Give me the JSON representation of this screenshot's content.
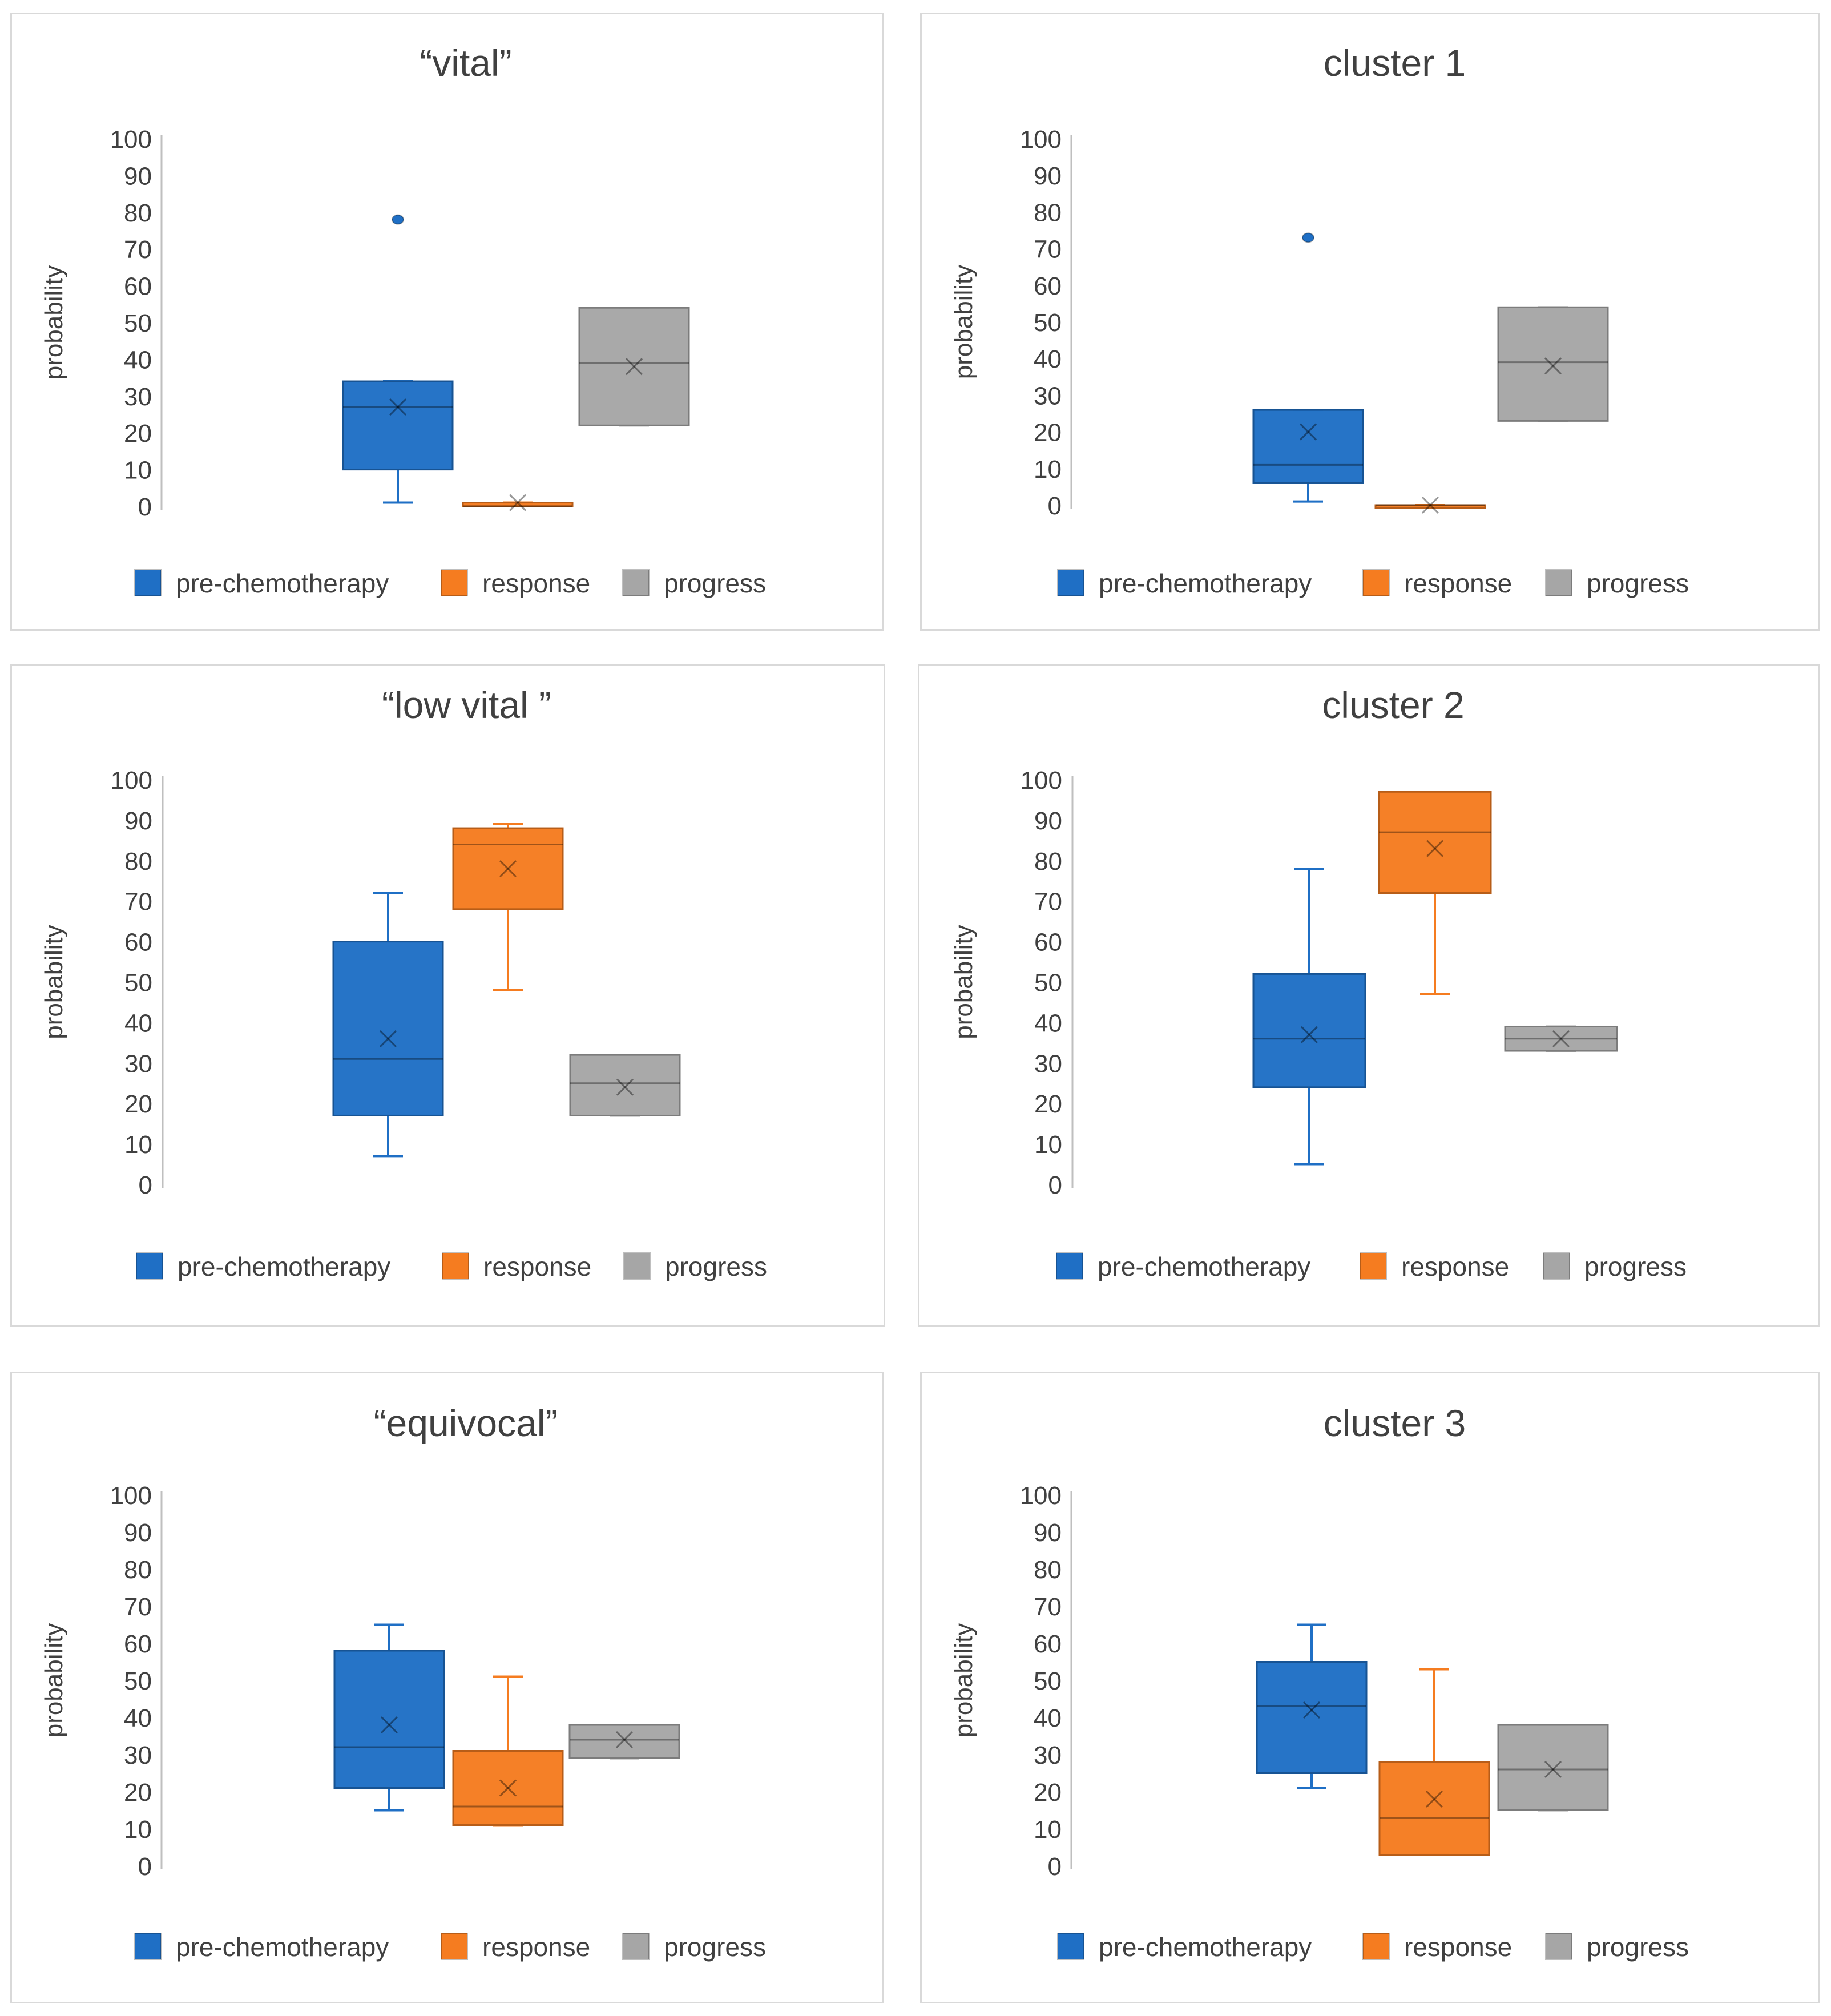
{
  "figure": {
    "colors": {
      "pre-chemotherapy": "#1f6fc5",
      "response": "#f57c20",
      "progress": "#a6a6a6",
      "axis": "#bfbfbf",
      "text": "#404040"
    }
  },
  "chart_data": [
    {
      "type": "boxplot",
      "title": "“vital”",
      "ylabel": "probability",
      "ylim": [
        0,
        100
      ],
      "yticks": [
        0,
        10,
        20,
        30,
        40,
        50,
        60,
        70,
        80,
        90,
        100
      ],
      "legend": "bottom",
      "series": [
        {
          "name": "pre-chemotherapy",
          "min": 1,
          "q1": 10,
          "median": 27,
          "q3": 34,
          "max": 34,
          "mean": 27,
          "outliers": [
            78
          ]
        },
        {
          "name": "response",
          "min": 0,
          "q1": 0,
          "median": 0,
          "q3": 1,
          "max": 1,
          "mean": 1,
          "outliers": []
        },
        {
          "name": "progress",
          "min": 22,
          "q1": 22,
          "median": 39,
          "q3": 54,
          "max": 54,
          "mean": 38,
          "outliers": []
        }
      ]
    },
    {
      "type": "boxplot",
      "title": "cluster 1",
      "ylabel": "probability",
      "ylim": [
        0,
        100
      ],
      "yticks": [
        0,
        10,
        20,
        30,
        40,
        50,
        60,
        70,
        80,
        90,
        100
      ],
      "legend": "bottom",
      "series": [
        {
          "name": "pre-chemotherapy",
          "min": 1,
          "q1": 6,
          "median": 11,
          "q3": 26,
          "max": 26,
          "mean": 20,
          "outliers": [
            73
          ]
        },
        {
          "name": "response",
          "min": 0,
          "q1": 0,
          "median": 0,
          "q3": 0,
          "max": 0,
          "mean": 0,
          "outliers": []
        },
        {
          "name": "progress",
          "min": 23,
          "q1": 23,
          "median": 39,
          "q3": 54,
          "max": 54,
          "mean": 38,
          "outliers": []
        }
      ]
    },
    {
      "type": "boxplot",
      "title": "“low vital ”",
      "ylabel": "probability",
      "ylim": [
        0,
        100
      ],
      "yticks": [
        0,
        10,
        20,
        30,
        40,
        50,
        60,
        70,
        80,
        90,
        100
      ],
      "legend": "bottom",
      "series": [
        {
          "name": "pre-chemotherapy",
          "min": 7,
          "q1": 17,
          "median": 31,
          "q3": 60,
          "max": 72,
          "mean": 36,
          "outliers": []
        },
        {
          "name": "response",
          "min": 48,
          "q1": 68,
          "median": 84,
          "q3": 88,
          "max": 89,
          "mean": 78,
          "outliers": []
        },
        {
          "name": "progress",
          "min": 17,
          "q1": 17,
          "median": 25,
          "q3": 32,
          "max": 32,
          "mean": 24,
          "outliers": []
        }
      ]
    },
    {
      "type": "boxplot",
      "title": "cluster 2",
      "ylabel": "probability",
      "ylim": [
        0,
        100
      ],
      "yticks": [
        0,
        10,
        20,
        30,
        40,
        50,
        60,
        70,
        80,
        90,
        100
      ],
      "legend": "bottom",
      "series": [
        {
          "name": "pre-chemotherapy",
          "min": 5,
          "q1": 24,
          "median": 36,
          "q3": 52,
          "max": 78,
          "mean": 37,
          "outliers": []
        },
        {
          "name": "response",
          "min": 47,
          "q1": 72,
          "median": 87,
          "q3": 97,
          "max": 97,
          "mean": 83,
          "outliers": []
        },
        {
          "name": "progress",
          "min": 33,
          "q1": 33,
          "median": 36,
          "q3": 39,
          "max": 39,
          "mean": 36,
          "outliers": []
        }
      ]
    },
    {
      "type": "boxplot",
      "title": "“equivocal”",
      "ylabel": "probability",
      "ylim": [
        0,
        100
      ],
      "yticks": [
        0,
        10,
        20,
        30,
        40,
        50,
        60,
        70,
        80,
        90,
        100
      ],
      "legend": "bottom",
      "series": [
        {
          "name": "pre-chemotherapy",
          "min": 15,
          "q1": 21,
          "median": 32,
          "q3": 58,
          "max": 65,
          "mean": 38,
          "outliers": []
        },
        {
          "name": "response",
          "min": 11,
          "q1": 11,
          "median": 16,
          "q3": 31,
          "max": 51,
          "mean": 21,
          "outliers": []
        },
        {
          "name": "progress",
          "min": 29,
          "q1": 29,
          "median": 34,
          "q3": 38,
          "max": 38,
          "mean": 34,
          "outliers": []
        }
      ]
    },
    {
      "type": "boxplot",
      "title": "cluster 3",
      "ylabel": "probability",
      "ylim": [
        0,
        100
      ],
      "yticks": [
        0,
        10,
        20,
        30,
        40,
        50,
        60,
        70,
        80,
        90,
        100
      ],
      "legend": "bottom",
      "series": [
        {
          "name": "pre-chemotherapy",
          "min": 21,
          "q1": 25,
          "median": 43,
          "q3": 55,
          "max": 65,
          "mean": 42,
          "outliers": []
        },
        {
          "name": "response",
          "min": 3,
          "q1": 3,
          "median": 13,
          "q3": 28,
          "max": 53,
          "mean": 18,
          "outliers": []
        },
        {
          "name": "progress",
          "min": 15,
          "q1": 15,
          "median": 26,
          "q3": 38,
          "max": 38,
          "mean": 26,
          "outliers": []
        }
      ]
    }
  ]
}
